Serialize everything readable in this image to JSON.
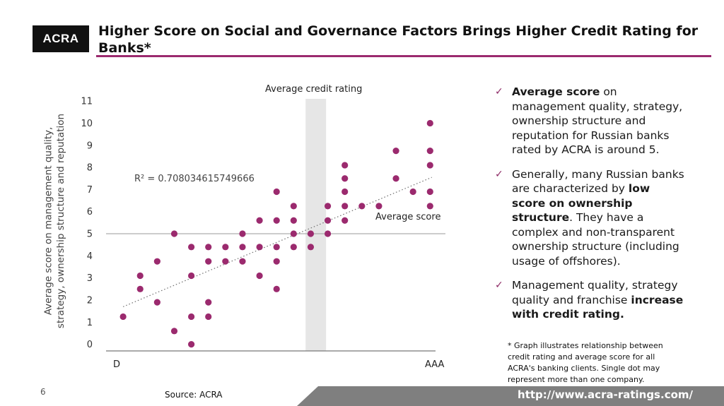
{
  "logo": {
    "text": "ACRA"
  },
  "title": "Higher Score on Social and Governance Factors Brings Higher Credit Rating for Banks*",
  "bullets": [
    {
      "bold_start": "Average score",
      "text_a": " on management quality, strategy, ownership structure and reputation for Russian banks rated by ACRA is around 5.",
      "bold_end": "",
      "text_b": ""
    },
    {
      "bold_start": "",
      "text_a": "Generally, many Russian banks are characterized by ",
      "bold_end": "low score on ownership structure",
      "text_b": ". They  have a complex and non-transparent ownership structure (including usage of offshores)."
    },
    {
      "bold_start": "",
      "text_a": "Management quality, strategy quality and franchise ",
      "bold_end": "increase with credit rating.",
      "text_b": ""
    }
  ],
  "footnote": "* Graph illustrates relationship between credit rating and average score for all ACRA's banking clients. Single dot may represent more than one company.",
  "page_number": "6",
  "source": "Source: ACRA",
  "url": "http://www.acra-ratings.com/",
  "colors": {
    "accent": "#9b2a6e",
    "dot": "#9b2a6e",
    "band": "#e6e6e6",
    "footer": "#7f7f7f"
  },
  "chart_data": {
    "type": "scatter",
    "ylabel": "Average score on management quality, strategy, ownership structure and reputation",
    "x_tick_labels": [
      "D",
      "AAA"
    ],
    "y_ticks": [
      0,
      1,
      2,
      3,
      4,
      5,
      6,
      7,
      8,
      9,
      10,
      11
    ],
    "xlim": [
      -0.8,
      19.1
    ],
    "ylim": [
      -0.3,
      11.1
    ],
    "average_score": 5.0,
    "average_score_label": "Average score",
    "average_rating_band": [
      10.9,
      12.1
    ],
    "average_rating_label": "Average credit rating",
    "r_squared_label": "R² = 0.708034615749666",
    "trendline": {
      "x1": 0.2,
      "y1": 1.7,
      "x2": 18.3,
      "y2": 7.55
    },
    "points": [
      {
        "x": 0.2,
        "y": 1.25
      },
      {
        "x": 1.2,
        "y": 2.5
      },
      {
        "x": 1.2,
        "y": 3.1
      },
      {
        "x": 2.2,
        "y": 1.9
      },
      {
        "x": 2.2,
        "y": 3.75
      },
      {
        "x": 3.2,
        "y": 0.6
      },
      {
        "x": 3.2,
        "y": 5.0
      },
      {
        "x": 4.2,
        "y": 0.0
      },
      {
        "x": 4.2,
        "y": 1.25
      },
      {
        "x": 4.2,
        "y": 3.1
      },
      {
        "x": 4.2,
        "y": 4.4
      },
      {
        "x": 5.2,
        "y": 1.25
      },
      {
        "x": 5.2,
        "y": 1.9
      },
      {
        "x": 5.2,
        "y": 3.75
      },
      {
        "x": 5.2,
        "y": 4.4
      },
      {
        "x": 6.2,
        "y": 3.75
      },
      {
        "x": 6.2,
        "y": 4.4
      },
      {
        "x": 7.2,
        "y": 3.75
      },
      {
        "x": 7.2,
        "y": 4.4
      },
      {
        "x": 7.2,
        "y": 5.0
      },
      {
        "x": 8.2,
        "y": 3.1
      },
      {
        "x": 8.2,
        "y": 4.4
      },
      {
        "x": 8.2,
        "y": 5.6
      },
      {
        "x": 9.2,
        "y": 2.5
      },
      {
        "x": 9.2,
        "y": 3.75
      },
      {
        "x": 9.2,
        "y": 4.4
      },
      {
        "x": 9.2,
        "y": 5.6
      },
      {
        "x": 9.2,
        "y": 6.9
      },
      {
        "x": 10.2,
        "y": 4.4
      },
      {
        "x": 10.2,
        "y": 5.0
      },
      {
        "x": 10.2,
        "y": 5.6
      },
      {
        "x": 10.2,
        "y": 6.25
      },
      {
        "x": 11.2,
        "y": 4.4
      },
      {
        "x": 11.2,
        "y": 5.0
      },
      {
        "x": 12.2,
        "y": 5.0
      },
      {
        "x": 12.2,
        "y": 5.6
      },
      {
        "x": 12.2,
        "y": 6.25
      },
      {
        "x": 13.2,
        "y": 5.6
      },
      {
        "x": 13.2,
        "y": 6.25
      },
      {
        "x": 13.2,
        "y": 6.9
      },
      {
        "x": 13.2,
        "y": 7.5
      },
      {
        "x": 13.2,
        "y": 8.1
      },
      {
        "x": 14.2,
        "y": 6.25
      },
      {
        "x": 15.2,
        "y": 6.25
      },
      {
        "x": 16.2,
        "y": 7.5
      },
      {
        "x": 16.2,
        "y": 8.75
      },
      {
        "x": 17.2,
        "y": 6.9
      },
      {
        "x": 18.2,
        "y": 6.25
      },
      {
        "x": 18.2,
        "y": 6.9
      },
      {
        "x": 18.2,
        "y": 8.1
      },
      {
        "x": 18.2,
        "y": 8.75
      },
      {
        "x": 18.2,
        "y": 10.0
      }
    ]
  }
}
